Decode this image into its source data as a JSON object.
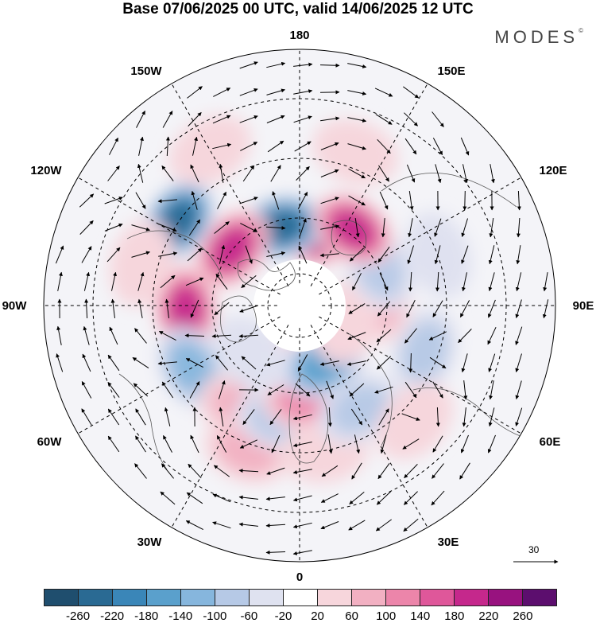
{
  "title": "Base 07/06/2025 00 UTC, valid 14/06/2025 12 UTC",
  "brand": "MODES",
  "brand_mark": "©",
  "longitudes": {
    "n0": "0",
    "e30": "30E",
    "e60": "60E",
    "e90": "90E",
    "e120": "120E",
    "e150": "150E",
    "n180": "180",
    "w150": "150W",
    "w120": "120W",
    "w90": "90W",
    "w60": "60W",
    "w30": "30W"
  },
  "vector_scale_label": "30",
  "colorbar": {
    "colors": [
      "#1f4e6e",
      "#2a6a93",
      "#3a86b8",
      "#5aa0cc",
      "#86b6dd",
      "#b6c9e6",
      "#dfe2f0",
      "#ffffff",
      "#f7d6dc",
      "#f2b0c2",
      "#ec85aa",
      "#df579a",
      "#c5288c",
      "#98127f",
      "#5c0e6e"
    ],
    "ticks": [
      "-260",
      "-220",
      "-180",
      "-140",
      "-100",
      "-60",
      "-20",
      "20",
      "60",
      "100",
      "140",
      "180",
      "220",
      "260"
    ]
  },
  "map_data": {
    "projection": "north polar stereographic",
    "field": "height anomaly",
    "anomaly_centers": [
      {
        "lon_deg": 170,
        "lat_deg": 58,
        "value": 230
      },
      {
        "lon_deg": -167,
        "lat_deg": 55,
        "value": -240
      },
      {
        "lon_deg": -130,
        "lat_deg": 52,
        "value": 200
      },
      {
        "lon_deg": -125,
        "lat_deg": 30,
        "value": -230
      },
      {
        "lon_deg": -88,
        "lat_deg": 42,
        "value": 200
      },
      {
        "lon_deg": -60,
        "lat_deg": 38,
        "value": -120
      },
      {
        "lon_deg": -30,
        "lat_deg": 40,
        "value": 80
      },
      {
        "lon_deg": -20,
        "lat_deg": 28,
        "value": 70
      },
      {
        "lon_deg": -10,
        "lat_deg": 42,
        "value": -60
      },
      {
        "lon_deg": 4,
        "lat_deg": 50,
        "value": 110
      },
      {
        "lon_deg": 12,
        "lat_deg": 70,
        "value": 60
      },
      {
        "lon_deg": 22,
        "lat_deg": 62,
        "value": -150
      },
      {
        "lon_deg": 10,
        "lat_deg": 30,
        "value": 60
      },
      {
        "lon_deg": 30,
        "lat_deg": 40,
        "value": -80
      },
      {
        "lon_deg": 70,
        "lat_deg": 35,
        "value": -70
      },
      {
        "lon_deg": 95,
        "lat_deg": 55,
        "value": 90
      },
      {
        "lon_deg": 70,
        "lat_deg": 68,
        "value": 40
      },
      {
        "lon_deg": 115,
        "lat_deg": 52,
        "value": -90
      },
      {
        "lon_deg": 145,
        "lat_deg": 50,
        "value": 190
      },
      {
        "lon_deg": 110,
        "lat_deg": 30,
        "value": -40
      },
      {
        "lon_deg": -150,
        "lat_deg": 20,
        "value": 60
      },
      {
        "lon_deg": -105,
        "lat_deg": 25,
        "value": 60
      },
      {
        "lon_deg": 160,
        "lat_deg": 25,
        "value": 50
      },
      {
        "lon_deg": 45,
        "lat_deg": 25,
        "value": 50
      },
      {
        "lon_deg": -45,
        "lat_deg": 60,
        "value": -20
      }
    ]
  }
}
